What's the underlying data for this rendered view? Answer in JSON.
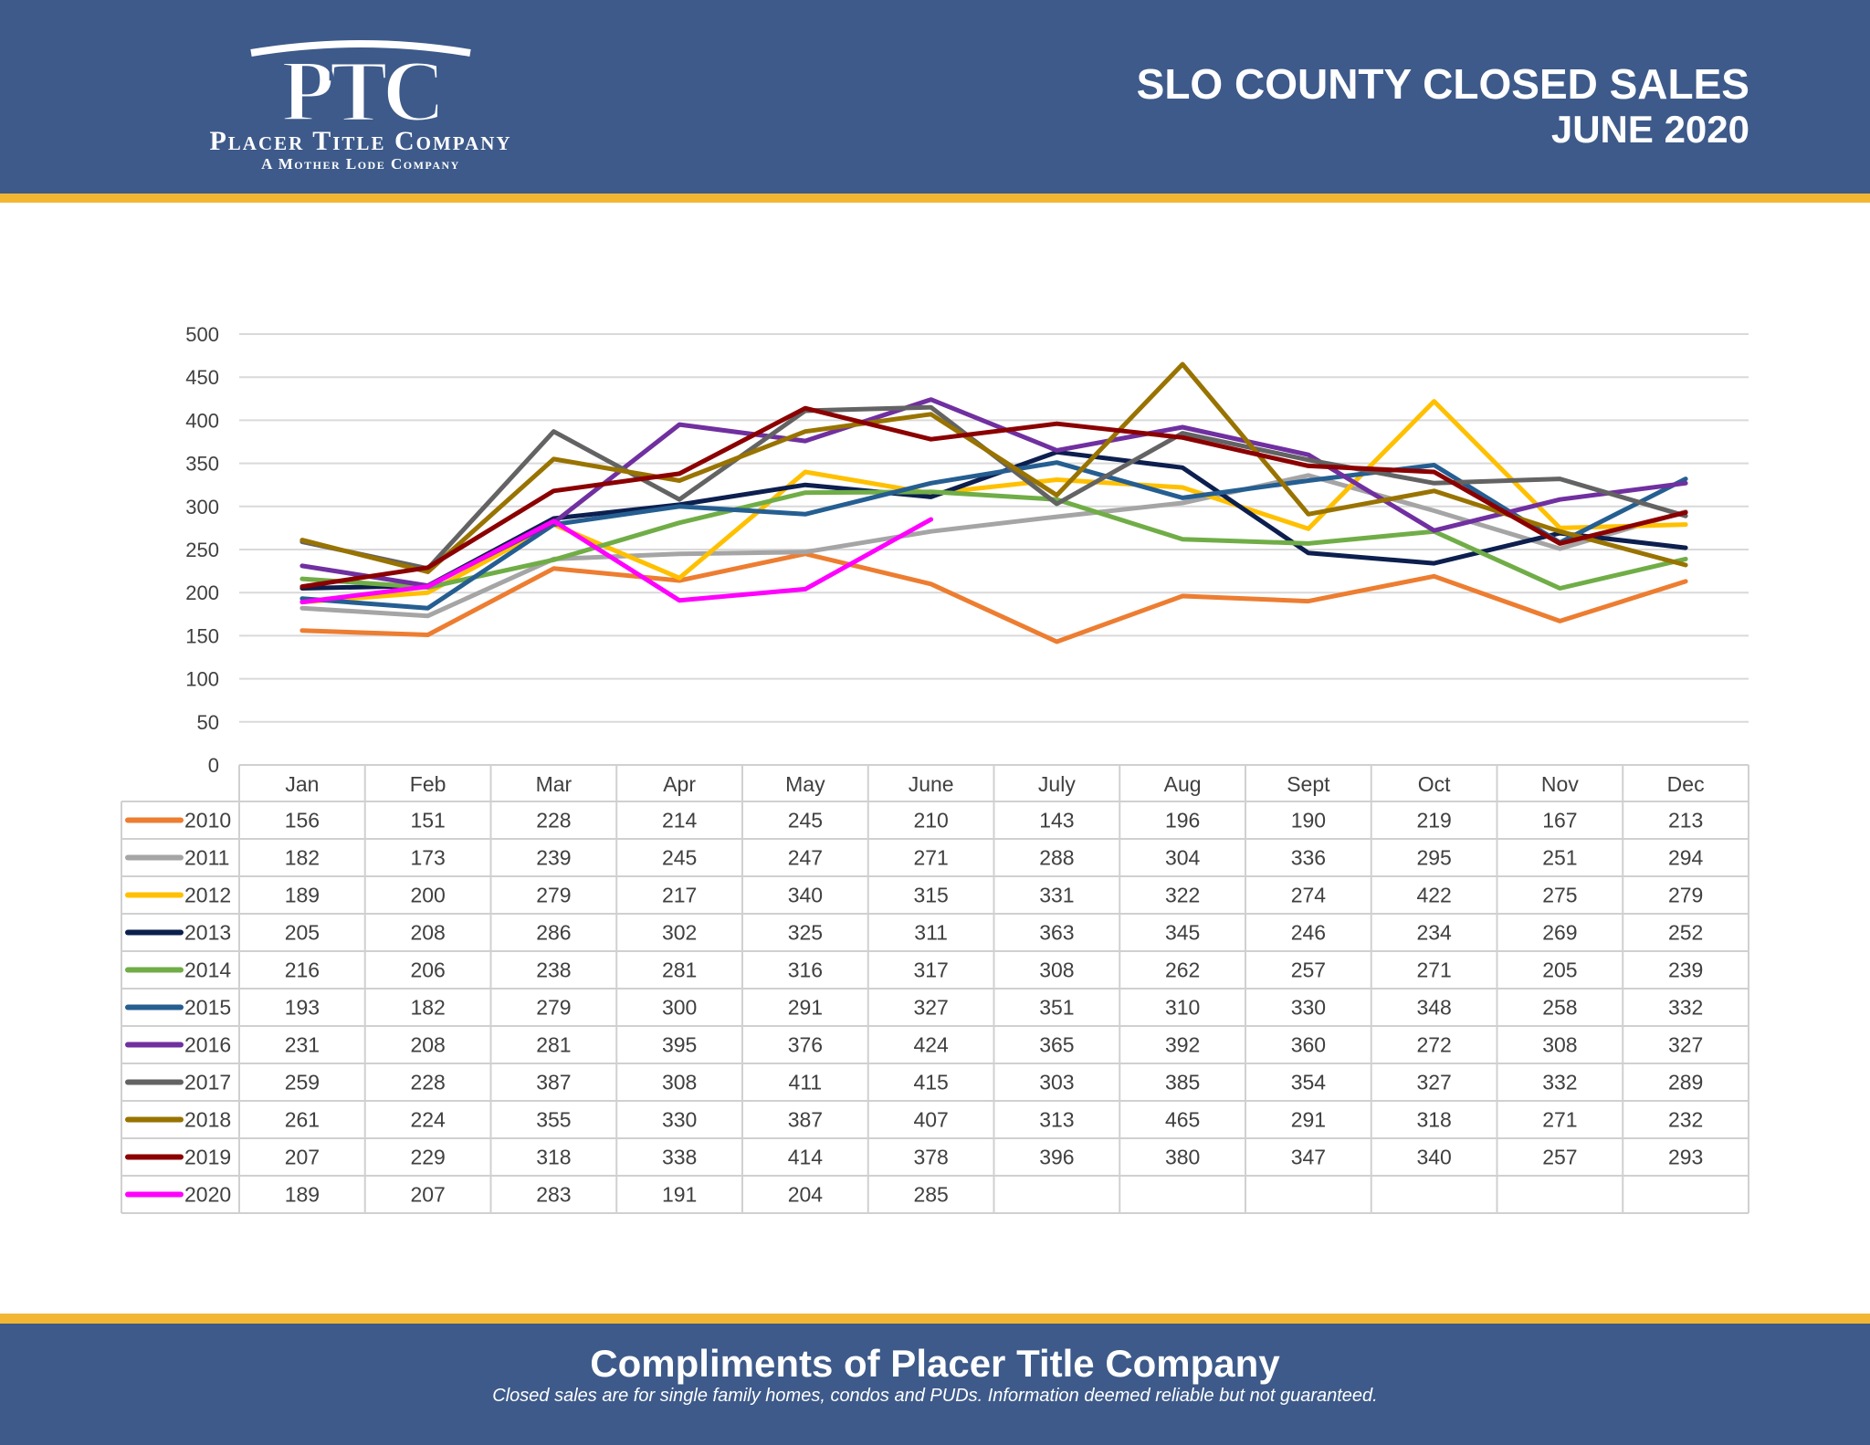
{
  "header": {
    "logo_letters": "PTC",
    "company_name": "Placer Title Company",
    "company_tagline": "A Mother Lode Company",
    "title_line1": "SLO COUNTY CLOSED SALES",
    "title_line2": "JUNE 2020"
  },
  "footer": {
    "title": "Compliments of Placer Title Company",
    "note": "Closed sales are for single family homes, condos and PUDs. Information deemed reliable but not guaranteed."
  },
  "colors": {
    "header_bg": "#3d5a8a",
    "accent_stripe": "#f2b632",
    "grid": "#d9d9d9",
    "table_border": "#d0d0d0"
  },
  "chart_data": {
    "type": "line",
    "title": "",
    "xlabel": "",
    "ylabel": "",
    "ylim": [
      0,
      500
    ],
    "yticks": [
      0,
      50,
      100,
      150,
      200,
      250,
      300,
      350,
      400,
      450,
      500
    ],
    "grid": true,
    "legend": "data-table-left",
    "categories": [
      "Jan",
      "Feb",
      "Mar",
      "Apr",
      "May",
      "June",
      "July",
      "Aug",
      "Sept",
      "Oct",
      "Nov",
      "Dec"
    ],
    "series": [
      {
        "name": "2010",
        "color": "#ed7d31",
        "values": [
          156,
          151,
          228,
          214,
          245,
          210,
          143,
          196,
          190,
          219,
          167,
          213
        ]
      },
      {
        "name": "2011",
        "color": "#a5a5a5",
        "values": [
          182,
          173,
          239,
          245,
          247,
          271,
          288,
          304,
          336,
          295,
          251,
          294
        ]
      },
      {
        "name": "2012",
        "color": "#ffc000",
        "values": [
          189,
          200,
          279,
          217,
          340,
          315,
          331,
          322,
          274,
          422,
          275,
          279
        ]
      },
      {
        "name": "2013",
        "color": "#0c1f4e",
        "values": [
          205,
          208,
          286,
          302,
          325,
          311,
          363,
          345,
          246,
          234,
          269,
          252
        ]
      },
      {
        "name": "2014",
        "color": "#70ad47",
        "values": [
          216,
          206,
          238,
          281,
          316,
          317,
          308,
          262,
          257,
          271,
          205,
          239
        ]
      },
      {
        "name": "2015",
        "color": "#255e91",
        "values": [
          193,
          182,
          279,
          300,
          291,
          327,
          351,
          310,
          330,
          348,
          258,
          332
        ]
      },
      {
        "name": "2016",
        "color": "#7030a0",
        "values": [
          231,
          208,
          281,
          395,
          376,
          424,
          365,
          392,
          360,
          272,
          308,
          327
        ]
      },
      {
        "name": "2017",
        "color": "#636363",
        "values": [
          259,
          228,
          387,
          308,
          411,
          415,
          303,
          385,
          354,
          327,
          332,
          289
        ]
      },
      {
        "name": "2018",
        "color": "#997300",
        "values": [
          261,
          224,
          355,
          330,
          387,
          407,
          313,
          465,
          291,
          318,
          271,
          232
        ]
      },
      {
        "name": "2019",
        "color": "#8b0000",
        "values": [
          207,
          229,
          318,
          338,
          414,
          378,
          396,
          380,
          347,
          340,
          257,
          293
        ]
      },
      {
        "name": "2020",
        "color": "#ff00ff",
        "values": [
          189,
          207,
          283,
          191,
          204,
          285,
          null,
          null,
          null,
          null,
          null,
          null
        ]
      }
    ]
  }
}
